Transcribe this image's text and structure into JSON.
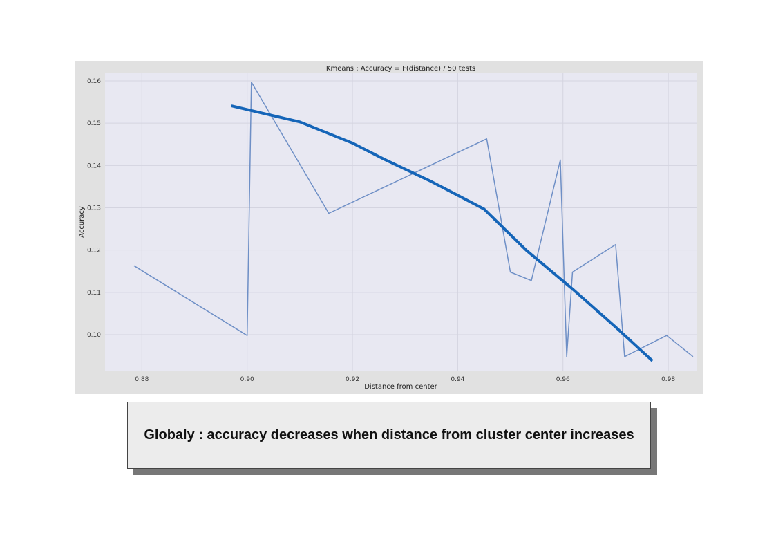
{
  "chart_data": {
    "type": "line",
    "title": "Kmeans : Accuracy = F(distance) / 50 tests",
    "xlabel": "Distance from center",
    "ylabel": "Accuracy",
    "xlim": [
      0.873,
      0.9855
    ],
    "ylim": [
      0.0915,
      0.1618
    ],
    "xticks": [
      0.88,
      0.9,
      0.92,
      0.94,
      0.96,
      0.98
    ],
    "xtick_labels": [
      "0.88",
      "0.90",
      "0.92",
      "0.94",
      "0.96",
      "0.98"
    ],
    "yticks": [
      0.1,
      0.11,
      0.12,
      0.13,
      0.14,
      0.15,
      0.16
    ],
    "ytick_labels": [
      "0.10",
      "0.11",
      "0.12",
      "0.13",
      "0.14",
      "0.15",
      "0.16"
    ],
    "grid": true,
    "background": "#e8e8f2",
    "series": [
      {
        "color": "#6e8fc6",
        "x": [
          0.8785,
          0.9,
          0.9008,
          0.9155,
          0.9455,
          0.95,
          0.954,
          0.9595,
          0.9607,
          0.9618,
          0.97,
          0.9717,
          0.9797,
          0.9847
        ],
        "y": [
          0.1163,
          0.0998,
          0.1597,
          0.1287,
          0.1463,
          0.1148,
          0.1128,
          0.1413,
          0.0948,
          0.1148,
          0.1213,
          0.0948,
          0.0998,
          0.0948
        ]
      },
      {
        "color": "#1565b8",
        "x": [
          0.897,
          0.91,
          0.92,
          0.926,
          0.935,
          0.945,
          0.953,
          0.962,
          0.97,
          0.977
        ],
        "y": [
          0.1541,
          0.1503,
          0.1453,
          0.1415,
          0.1362,
          0.1297,
          0.12,
          0.1106,
          0.1018,
          0.0938
        ]
      }
    ]
  },
  "callout": {
    "text": "Globaly : accuracy decreases when distance from cluster center increases"
  }
}
